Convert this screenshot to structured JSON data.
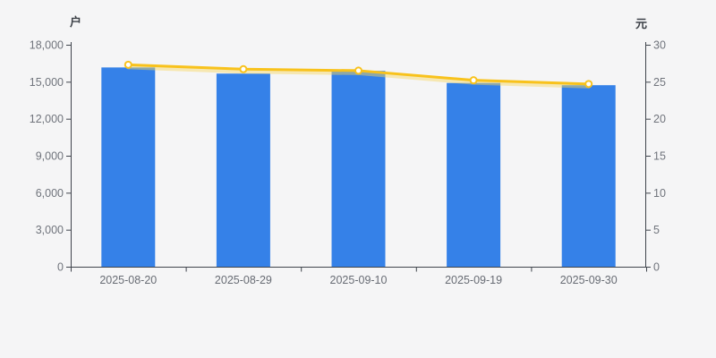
{
  "chart_data": {
    "type": "bar",
    "background": "#f5f5f6",
    "grid": false,
    "legend": null,
    "categories": [
      "2025-08-20",
      "2025-08-29",
      "2025-09-10",
      "2025-09-19",
      "2025-09-30"
    ],
    "series": [
      {
        "type": "bar",
        "name": "户",
        "axis": "left",
        "color": "#3581e8",
        "values": [
          16160,
          15660,
          15880,
          14900,
          14720
        ]
      },
      {
        "type": "line",
        "name": "元",
        "axis": "right",
        "color": "#f8c21c",
        "marker": "hollow-circle",
        "marker_fill": "#ffffff",
        "values": [
          27.3,
          26.7,
          26.5,
          25.2,
          24.7
        ]
      }
    ],
    "left_axis": {
      "title": "户",
      "min": 0,
      "max": 18000,
      "interval": 3000,
      "tick_labels": [
        "18,000",
        "15,000",
        "12,000",
        "9,000",
        "6,000",
        "3,000",
        "0"
      ]
    },
    "right_axis": {
      "title": "元",
      "min": 0,
      "max": 30,
      "interval": 5,
      "tick_labels": [
        "30",
        "25",
        "20",
        "15",
        "10",
        "5",
        "0"
      ]
    },
    "style": {
      "axis_line_color": "#3f444c",
      "tick_text_color": "#70747c",
      "date_text_color": "#686c74",
      "line_glow_color": "#f8d65e"
    }
  }
}
